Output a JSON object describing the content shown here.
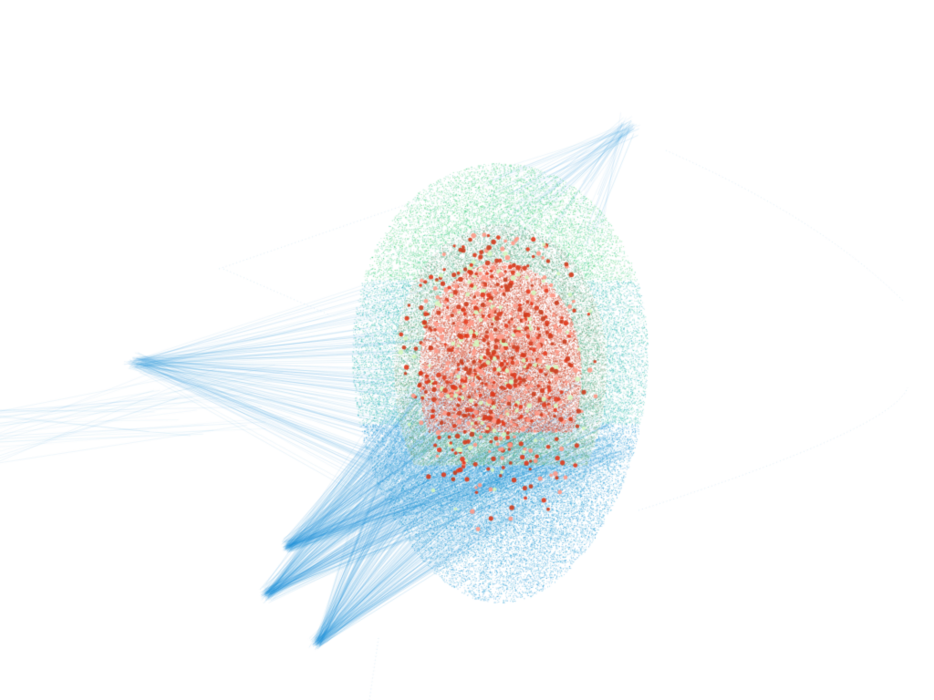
{
  "scene": {
    "background_color": "#ffffff",
    "colors": {
      "outer_edges": "#1e90d8",
      "shell": "#25a6d6",
      "mid": "#35c79a",
      "top_rim": "#52d86a",
      "core": "#e83a1e",
      "core_dark": "#a0401c",
      "node_highlight": "#ff9a88",
      "node_pale": "#d6f7c0"
    },
    "description_items": [
      "dense-point-cloud",
      "radial-edges",
      "core-node-cluster"
    ]
  }
}
